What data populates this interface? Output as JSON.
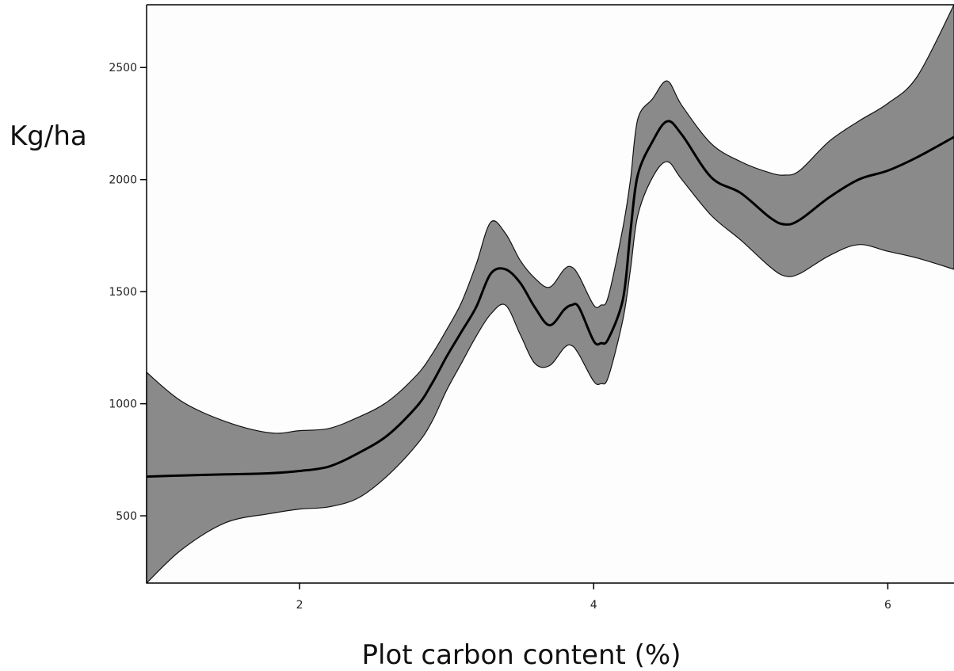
{
  "chart_data": {
    "type": "line",
    "title": "",
    "xlabel": "Plot carbon content (%)",
    "ylabel": "Kg/ha",
    "xlim": [
      0.96,
      6.45
    ],
    "ylim": [
      200,
      2780
    ],
    "xticks": [
      {
        "value": 2,
        "label": "2"
      },
      {
        "value": 4,
        "label": "4"
      },
      {
        "value": 6,
        "label": "6"
      }
    ],
    "yticks": [
      {
        "value": 500,
        "label": "500"
      },
      {
        "value": 1000,
        "label": "1000"
      },
      {
        "value": 1500,
        "label": "1500"
      },
      {
        "value": 2000,
        "label": "2000"
      },
      {
        "value": 2500,
        "label": "2500"
      }
    ],
    "grid": false,
    "legend": "none",
    "colors": {
      "band": "#8a8a8a",
      "line": "#000000",
      "axis": "#000000",
      "background": "#fdfdfd"
    },
    "series": [
      {
        "x": [
          0.96,
          1.2,
          1.5,
          1.8,
          2.0,
          2.2,
          2.4,
          2.6,
          2.8,
          2.9,
          3.0,
          3.1,
          3.2,
          3.3,
          3.4,
          3.5,
          3.6,
          3.7,
          3.8,
          3.85,
          3.9,
          4.0,
          4.05,
          4.1,
          4.2,
          4.25,
          4.3,
          4.4,
          4.5,
          4.6,
          4.8,
          5.0,
          5.2,
          5.3,
          5.4,
          5.6,
          5.8,
          6.0,
          6.2,
          6.45
        ],
        "values": [
          675,
          680,
          685,
          690,
          700,
          720,
          780,
          860,
          990,
          1090,
          1210,
          1320,
          1430,
          1580,
          1600,
          1540,
          1430,
          1350,
          1420,
          1440,
          1430,
          1280,
          1270,
          1290,
          1470,
          1770,
          2020,
          2170,
          2260,
          2200,
          2010,
          1940,
          1830,
          1800,
          1820,
          1920,
          2000,
          2040,
          2100,
          2190
        ],
        "upper": [
          1140,
          1010,
          920,
          870,
          880,
          890,
          940,
          1010,
          1130,
          1220,
          1330,
          1450,
          1620,
          1810,
          1760,
          1640,
          1560,
          1520,
          1600,
          1610,
          1570,
          1440,
          1440,
          1480,
          1790,
          2000,
          2270,
          2360,
          2440,
          2330,
          2160,
          2080,
          2030,
          2020,
          2040,
          2170,
          2260,
          2340,
          2460,
          2780
        ],
        "lower": [
          200,
          350,
          470,
          510,
          530,
          540,
          580,
          680,
          820,
          920,
          1060,
          1180,
          1300,
          1400,
          1440,
          1310,
          1180,
          1170,
          1250,
          1260,
          1220,
          1100,
          1090,
          1120,
          1380,
          1600,
          1840,
          2010,
          2080,
          2000,
          1840,
          1730,
          1610,
          1570,
          1580,
          1660,
          1710,
          1680,
          1650,
          1600
        ]
      }
    ]
  }
}
